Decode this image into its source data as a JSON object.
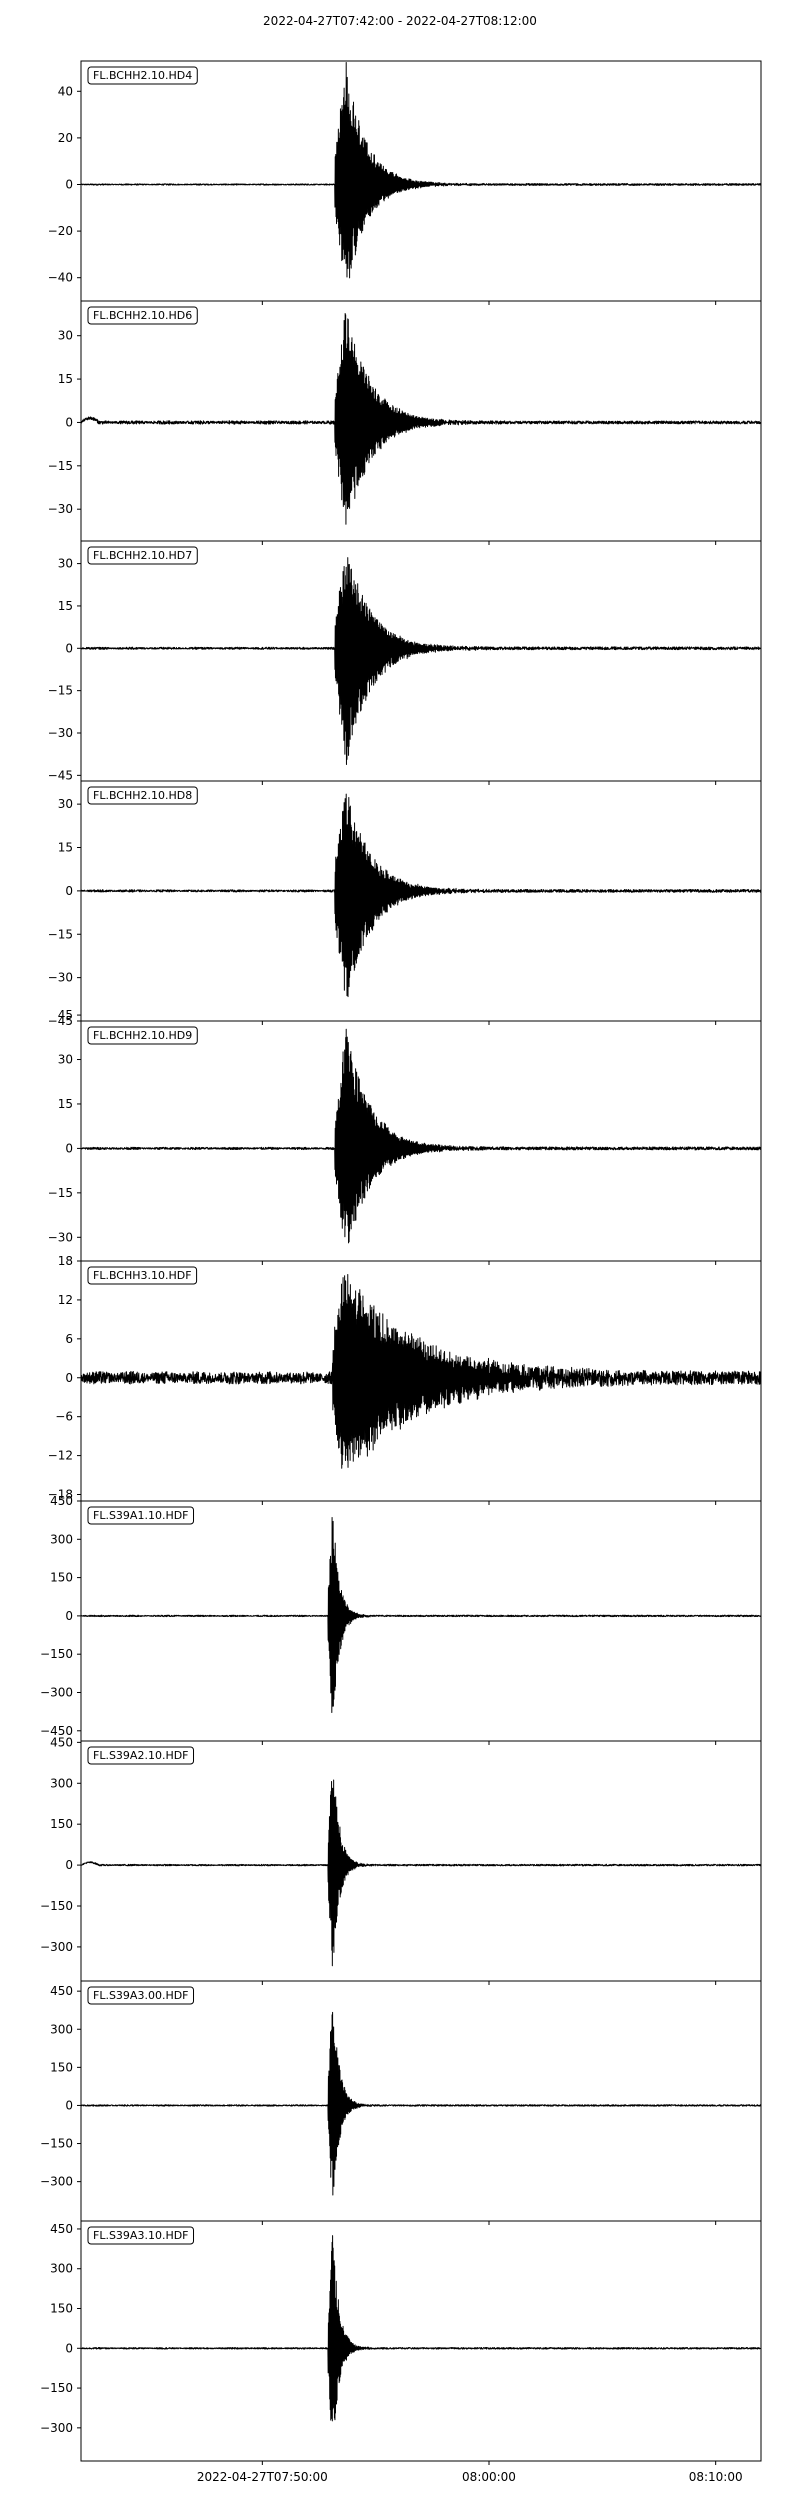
{
  "chart_data": {
    "type": "line",
    "title": "2022-04-27T07:42:00  -  2022-04-27T08:12:00",
    "x_ticks": [
      "2022-04-27T07:50:00",
      "08:00:00",
      "08:10:00"
    ],
    "x_tick_minutes": [
      8,
      18,
      28
    ],
    "x_range_minutes": [
      0,
      30
    ],
    "legend_placement": "top-left",
    "grid": false,
    "line_color": "#000000",
    "panels": [
      {
        "trace": "FL.BCHH2.10.HD4",
        "y_range": [
          -50,
          53
        ],
        "yticks": [
          40,
          20,
          0,
          -20,
          -40
        ],
        "ytick_labels": [
          "40",
          "20",
          "0",
          "−20",
          "−40"
        ],
        "peak_pos": 53,
        "peak_neg": -48,
        "onset_minute": 11.2,
        "peak_minute": 11.7,
        "decay_minutes": 2.5,
        "noise": 0.4,
        "pre_noise": 0.3,
        "drift": 0
      },
      {
        "trace": "FL.BCHH2.10.HD6",
        "y_range": [
          -41,
          42
        ],
        "yticks": [
          30,
          15,
          0,
          -15,
          -30
        ],
        "ytick_labels": [
          "30",
          "15",
          "0",
          "−15",
          "−30"
        ],
        "peak_pos": 41,
        "peak_neg": -38,
        "onset_minute": 11.2,
        "peak_minute": 11.7,
        "decay_minutes": 3.0,
        "noise": 0.5,
        "pre_noise": 0.6,
        "drift": 1.5
      },
      {
        "trace": "FL.BCHH2.10.HD7",
        "y_range": [
          -47,
          38
        ],
        "yticks": [
          30,
          15,
          0,
          -15,
          -30,
          -45
        ],
        "ytick_labels": [
          "30",
          "15",
          "0",
          "−15",
          "−30",
          "−45"
        ],
        "peak_pos": 37,
        "peak_neg": -42,
        "onset_minute": 11.2,
        "peak_minute": 11.7,
        "decay_minutes": 3.0,
        "noise": 0.5,
        "pre_noise": 0.4,
        "drift": 0
      },
      {
        "trace": "FL.BCHH2.10.HD8",
        "y_range": [
          -45,
          38
        ],
        "yticks": [
          30,
          15,
          0,
          -15,
          -30,
          -45
        ],
        "ytick_labels": [
          "30",
          "15",
          "0",
          "−15",
          "−30",
          "−45"
        ],
        "peak_pos": 37,
        "peak_neg": -41,
        "onset_minute": 11.2,
        "peak_minute": 11.7,
        "decay_minutes": 3.0,
        "noise": 0.5,
        "pre_noise": 0.4,
        "drift": 0
      },
      {
        "trace": "FL.BCHH2.10.HD9",
        "y_range": [
          -38,
          43
        ],
        "yticks": [
          45,
          30,
          15,
          0,
          -15,
          -30
        ],
        "ytick_labels": [
          "45",
          "30",
          "15",
          "0",
          "−15",
          "−30"
        ],
        "peak_pos": 41,
        "peak_neg": -37,
        "onset_minute": 11.2,
        "peak_minute": 11.7,
        "decay_minutes": 3.0,
        "noise": 0.5,
        "pre_noise": 0.4,
        "drift": 0
      },
      {
        "trace": "FL.BCHH3.10.HDF",
        "y_range": [
          -19,
          18
        ],
        "yticks": [
          18,
          12,
          6,
          0,
          -6,
          -12,
          -18
        ],
        "ytick_labels": [
          "18",
          "12",
          "6",
          "0",
          "−6",
          "−12",
          "−18"
        ],
        "peak_pos": 16.5,
        "peak_neg": -16,
        "onset_minute": 11.1,
        "peak_minute": 11.5,
        "decay_minutes": 9.0,
        "noise": 1.0,
        "pre_noise": 1.0,
        "drift": 0
      },
      {
        "trace": "FL.S39A1.10.HDF",
        "y_range": [
          -490,
          450
        ],
        "yticks": [
          450,
          300,
          150,
          0,
          -150,
          -300,
          -450
        ],
        "ytick_labels": [
          "450",
          "300",
          "150",
          "0",
          "−150",
          "−300",
          "−450"
        ],
        "peak_pos": 430,
        "peak_neg": -470,
        "onset_minute": 10.9,
        "peak_minute": 11.1,
        "decay_minutes": 0.8,
        "noise": 3,
        "pre_noise": 3,
        "drift": 0
      },
      {
        "trace": "FL.S39A2.10.HDF",
        "y_range": [
          -425,
          455
        ],
        "yticks": [
          450,
          300,
          150,
          0,
          -150,
          -300
        ],
        "ytick_labels": [
          "450",
          "300",
          "150",
          "0",
          "−150",
          "−300"
        ],
        "peak_pos": 440,
        "peak_neg": -400,
        "onset_minute": 10.9,
        "peak_minute": 11.1,
        "decay_minutes": 0.8,
        "noise": 3,
        "pre_noise": 3,
        "drift": 10
      },
      {
        "trace": "FL.S39A3.00.HDF",
        "y_range": [
          -455,
          490
        ],
        "yticks": [
          450,
          300,
          150,
          0,
          -150,
          -300
        ],
        "ytick_labels": [
          "450",
          "300",
          "150",
          "0",
          "−150",
          "−300"
        ],
        "peak_pos": 470,
        "peak_neg": -410,
        "onset_minute": 10.9,
        "peak_minute": 11.1,
        "decay_minutes": 0.8,
        "noise": 3,
        "pre_noise": 3,
        "drift": 0
      },
      {
        "trace": "FL.S39A3.10.HDF",
        "y_range": [
          -425,
          480
        ],
        "yticks": [
          450,
          300,
          150,
          0,
          -150,
          -300
        ],
        "ytick_labels": [
          "450",
          "300",
          "150",
          "0",
          "−150",
          "−300"
        ],
        "peak_pos": 470,
        "peak_neg": -400,
        "onset_minute": 10.9,
        "peak_minute": 11.1,
        "decay_minutes": 0.8,
        "noise": 3,
        "pre_noise": 3,
        "drift": 0
      }
    ]
  }
}
